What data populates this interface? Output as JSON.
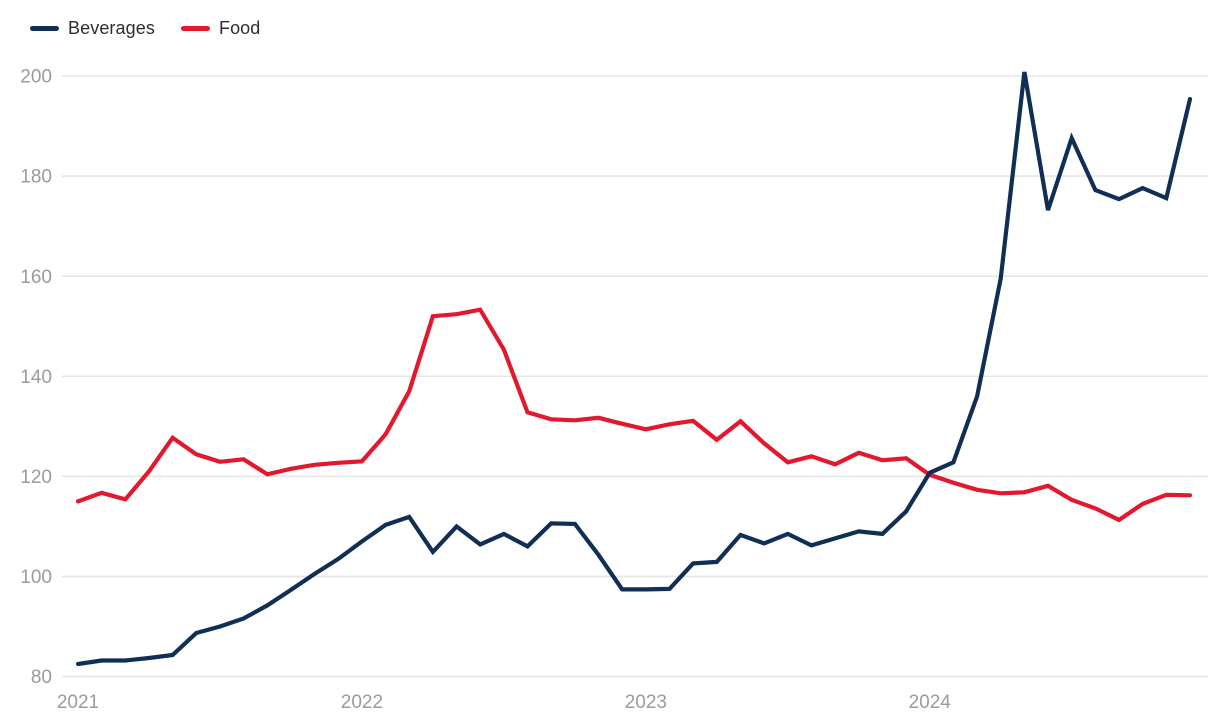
{
  "legend": {
    "items": [
      {
        "label": "Beverages",
        "color": "#112e54"
      },
      {
        "label": "Food",
        "color": "#e2182d"
      }
    ]
  },
  "chart_data": {
    "type": "line",
    "title": "",
    "xlabel": "",
    "ylabel": "",
    "ylim": [
      80,
      200
    ],
    "y_ticks": [
      80,
      100,
      120,
      140,
      160,
      180,
      200
    ],
    "x_tick_labels": [
      "2021",
      "2022",
      "2023",
      "2024"
    ],
    "x_tick_positions": [
      0,
      12,
      24,
      36
    ],
    "grid": "horizontal",
    "legend_position": "top-left",
    "background_color": "#ffffff",
    "gridline_color": "#e5e5e5",
    "axis_label_color": "#9b9b9b",
    "x": [
      "2021-01",
      "2021-02",
      "2021-03",
      "2021-04",
      "2021-05",
      "2021-06",
      "2021-07",
      "2021-08",
      "2021-09",
      "2021-10",
      "2021-11",
      "2021-12",
      "2022-01",
      "2022-02",
      "2022-03",
      "2022-04",
      "2022-05",
      "2022-06",
      "2022-07",
      "2022-08",
      "2022-09",
      "2022-10",
      "2022-11",
      "2022-12",
      "2023-01",
      "2023-02",
      "2023-03",
      "2023-04",
      "2023-05",
      "2023-06",
      "2023-07",
      "2023-08",
      "2023-09",
      "2023-10",
      "2023-11",
      "2023-12",
      "2024-01",
      "2024-02",
      "2024-03",
      "2024-04",
      "2024-05",
      "2024-06",
      "2024-07",
      "2024-08",
      "2024-09",
      "2024-10",
      "2024-11",
      "2024-12"
    ],
    "series": [
      {
        "name": "Beverages",
        "color": "#112e54",
        "values": [
          82.5,
          83.2,
          83.2,
          83.7,
          84.3,
          88.7,
          90.0,
          91.6,
          94.2,
          97.3,
          100.5,
          103.5,
          107.0,
          110.3,
          111.9,
          104.9,
          110.0,
          106.4,
          108.5,
          106.0,
          110.6,
          110.5,
          104.3,
          97.4,
          97.4,
          97.5,
          102.6,
          102.9,
          108.3,
          106.6,
          108.5,
          106.2,
          107.6,
          109.0,
          108.5,
          113.0,
          120.7,
          122.8,
          136.0,
          159.5,
          200.8,
          173.2,
          187.6,
          177.2,
          175.4,
          177.6,
          175.6,
          195.4
        ]
      },
      {
        "name": "Food",
        "color": "#e2182d",
        "values": [
          115.0,
          116.7,
          115.4,
          121.0,
          127.7,
          124.4,
          122.9,
          123.4,
          120.4,
          121.5,
          122.3,
          122.7,
          123.0,
          128.4,
          137.0,
          152.0,
          152.4,
          153.3,
          145.3,
          132.8,
          131.4,
          131.2,
          131.7,
          130.5,
          129.4,
          130.4,
          131.1,
          127.3,
          131.0,
          126.6,
          122.8,
          124.0,
          122.4,
          124.7,
          123.2,
          123.6,
          120.3,
          118.7,
          117.3,
          116.6,
          116.8,
          118.1,
          115.3,
          113.6,
          111.3,
          114.5,
          116.3,
          116.2
        ]
      }
    ]
  }
}
